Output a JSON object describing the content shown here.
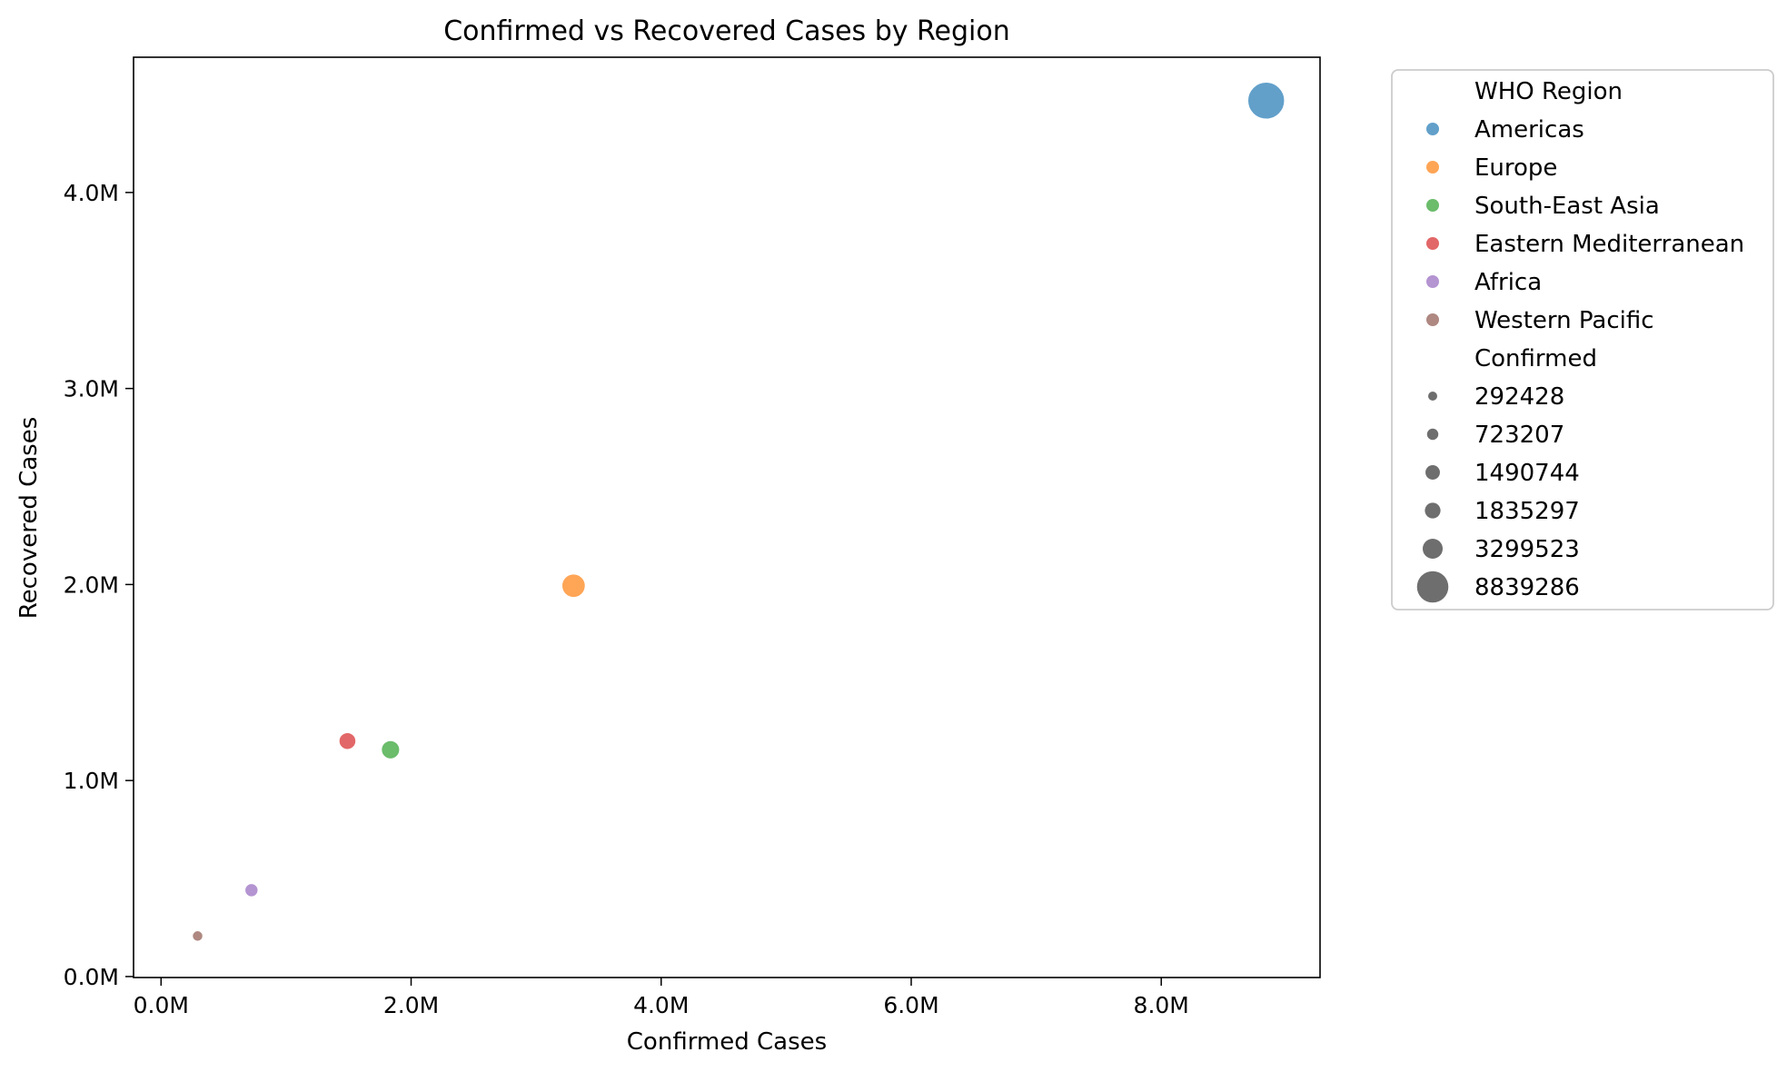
{
  "chart_data": {
    "type": "scatter",
    "title": "Confirmed vs Recovered Cases by Region",
    "xlabel": "Confirmed Cases",
    "ylabel": "Recovered Cases",
    "xlim": [
      -220000,
      9270000
    ],
    "ylim": [
      -5000,
      4690000
    ],
    "x_ticks": [
      {
        "value": 0,
        "label": "0.0M"
      },
      {
        "value": 2000000,
        "label": "2.0M"
      },
      {
        "value": 4000000,
        "label": "4.0M"
      },
      {
        "value": 6000000,
        "label": "6.0M"
      },
      {
        "value": 8000000,
        "label": "8.0M"
      }
    ],
    "y_ticks": [
      {
        "value": 0,
        "label": "0.0M"
      },
      {
        "value": 1000000,
        "label": "1.0M"
      },
      {
        "value": 2000000,
        "label": "2.0M"
      },
      {
        "value": 3000000,
        "label": "3.0M"
      },
      {
        "value": 4000000,
        "label": "4.0M"
      }
    ],
    "grid": false,
    "legend_position": "outside-right",
    "series": [
      {
        "name": "Americas",
        "color": "#1f77b4",
        "x": 8839286,
        "y": 4468616
      },
      {
        "name": "Europe",
        "color": "#ff7f0e",
        "x": 3299523,
        "y": 1993723
      },
      {
        "name": "South-East Asia",
        "color": "#2ca02c",
        "x": 1835297,
        "y": 1156933
      },
      {
        "name": "Eastern Mediterranean",
        "color": "#d62728",
        "x": 1490744,
        "y": 1201400
      },
      {
        "name": "Africa",
        "color": "#9467bd",
        "x": 723207,
        "y": 440645
      },
      {
        "name": "Western Pacific",
        "color": "#8c564b",
        "x": 292428,
        "y": 206770
      }
    ],
    "legend": {
      "hue_title": "WHO Region",
      "size_title": "Confirmed",
      "size_entries": [
        "292428",
        "723207",
        "1490744",
        "1835297",
        "3299523",
        "8839286"
      ]
    },
    "point_alpha": 0.7
  }
}
